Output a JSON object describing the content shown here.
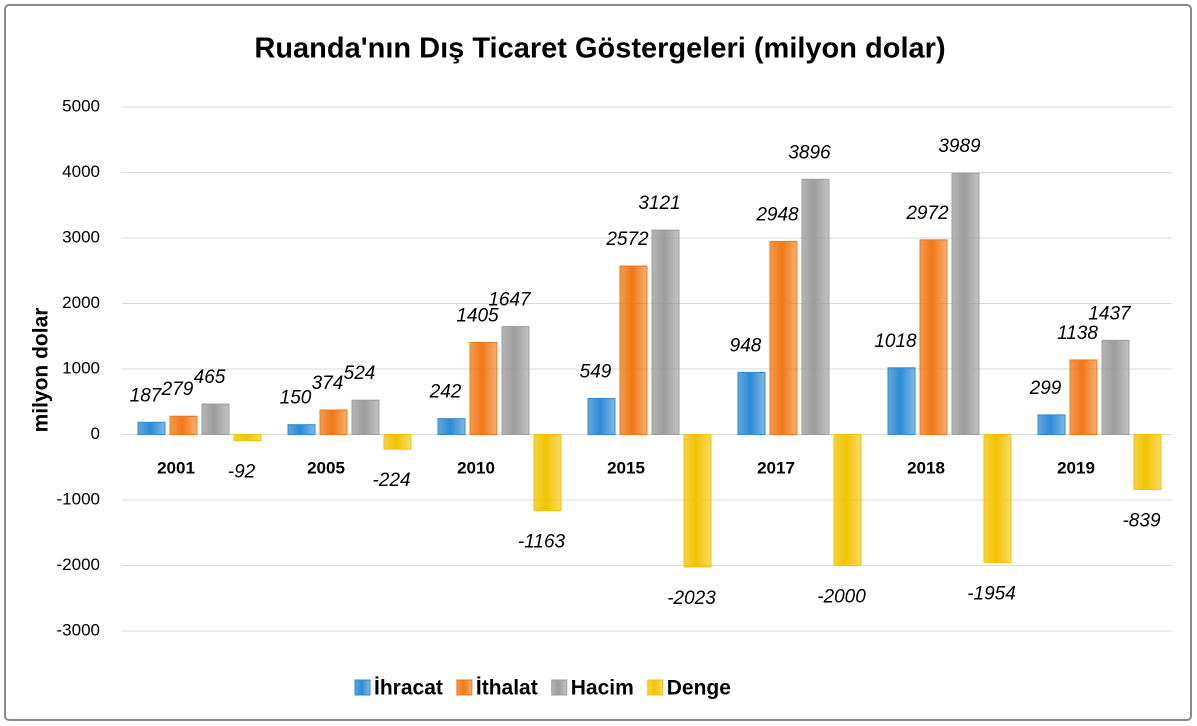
{
  "chart_data": {
    "type": "bar",
    "title": "Ruanda'nın Dış Ticaret Göstergeleri (milyon dolar)",
    "y_label": "milyon dolar",
    "categories": [
      "2001",
      "2005",
      "2010",
      "2015",
      "2017",
      "2018",
      "2019"
    ],
    "series": [
      {
        "name": "İhracat",
        "color": "#2e8ad6",
        "values": [
          187,
          150,
          242,
          549,
          948,
          1018,
          299
        ]
      },
      {
        "name": "İthalat",
        "color": "#f07816",
        "values": [
          279,
          374,
          1405,
          2572,
          2948,
          2972,
          1138
        ]
      },
      {
        "name": "Hacim",
        "color": "#9c9c9c",
        "values": [
          465,
          524,
          1647,
          3121,
          3896,
          3989,
          1437
        ]
      },
      {
        "name": "Denge",
        "color": "#f3c300",
        "values": [
          -92,
          -224,
          -1163,
          -2023,
          -2000,
          -1954,
          -839
        ]
      }
    ],
    "ylim": [
      -3000,
      5000
    ],
    "yticks": [
      -3000,
      -2000,
      -1000,
      0,
      1000,
      2000,
      3000,
      4000,
      5000
    ],
    "grid": true,
    "legend": "bottom"
  }
}
